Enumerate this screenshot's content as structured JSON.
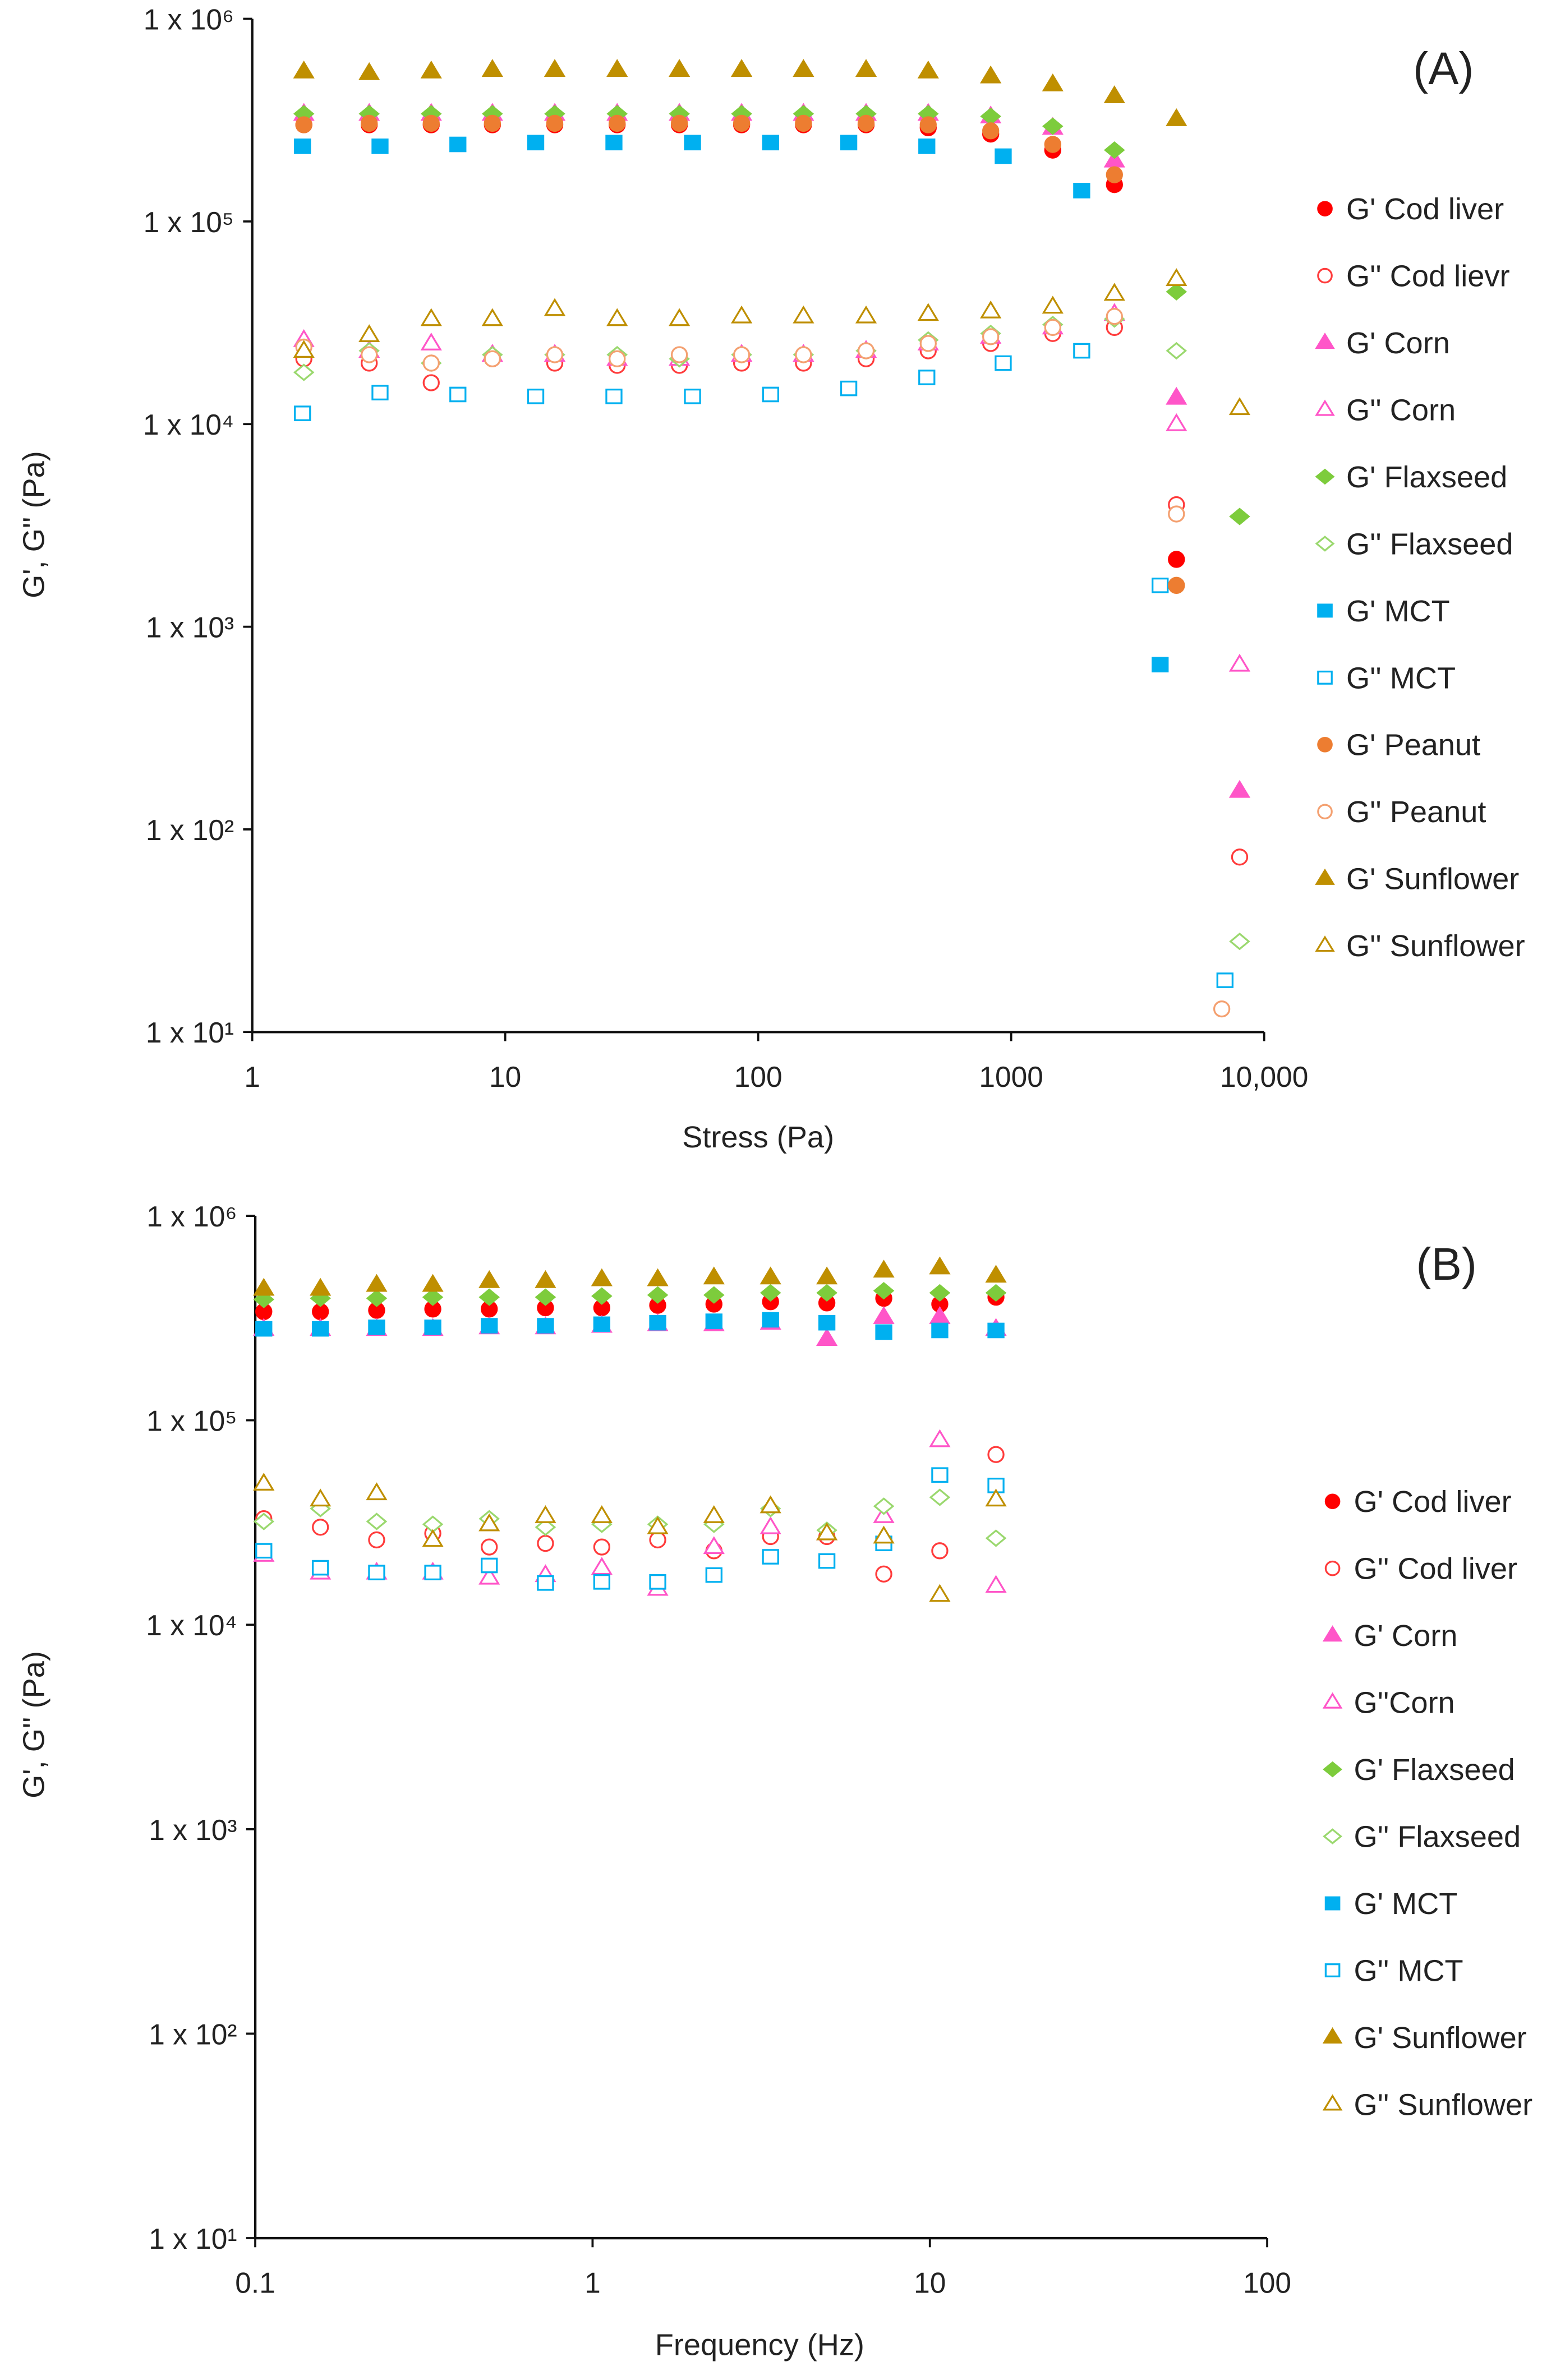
{
  "chart_data": [
    {
      "panel": "(A)",
      "type": "scatter",
      "xlabel": "Stress (Pa)",
      "ylabel": "G', G'' (Pa)",
      "xscale": "log",
      "yscale": "log",
      "xlim": [
        1,
        10000
      ],
      "ylim": [
        10,
        1000000
      ],
      "xticks": [
        {
          "v": 1,
          "label": "1"
        },
        {
          "v": 10,
          "label": "10"
        },
        {
          "v": 100,
          "label": "100"
        },
        {
          "v": 1000,
          "label": "1000"
        },
        {
          "v": 10000,
          "label": "10,000"
        }
      ],
      "yticks": [
        {
          "v": 1000000,
          "label": "1 x 10⁶"
        },
        {
          "v": 100000,
          "label": "1 x 10⁵"
        },
        {
          "v": 10000,
          "label": "1 x 10⁴"
        },
        {
          "v": 1000,
          "label": "1 x 10³"
        },
        {
          "v": 100,
          "label": "1 x 10²"
        },
        {
          "v": 10,
          "label": "1 x 10¹"
        }
      ],
      "legend_position": "right",
      "series": [
        {
          "name": "G' Cod liver",
          "color": "#ff0000",
          "marker": "circle",
          "filled": true,
          "x": [
            1.6,
            2.9,
            5.1,
            8.9,
            15.7,
            27.7,
            48.8,
            86,
            151,
            267,
            470,
            830,
            1460,
            2560,
            4500
          ],
          "y": [
            300000,
            300000,
            300000,
            300000,
            300000,
            300000,
            300000,
            300000,
            300000,
            300000,
            290000,
            270000,
            225000,
            152000,
            2150
          ]
        },
        {
          "name": "G'' Cod lievr",
          "color": "#ff3b3b",
          "marker": "circle",
          "filled": false,
          "x": [
            1.6,
            2.9,
            5.1,
            8.9,
            15.7,
            27.7,
            48.8,
            86,
            151,
            267,
            470,
            830,
            1460,
            2560,
            4500,
            8000
          ],
          "y": [
            21000,
            20000,
            16000,
            21000,
            20000,
            19500,
            19500,
            20000,
            20000,
            21000,
            23000,
            25000,
            28000,
            30000,
            4000,
            73
          ]
        },
        {
          "name": "G' Corn",
          "color": "#ff55c8",
          "marker": "triangle",
          "filled": true,
          "x": [
            1.6,
            2.9,
            5.1,
            8.9,
            15.7,
            27.7,
            48.8,
            86,
            151,
            267,
            470,
            830,
            1460,
            2560,
            4500,
            8000
          ],
          "y": [
            340000,
            340000,
            340000,
            340000,
            340000,
            340000,
            340000,
            340000,
            340000,
            340000,
            340000,
            330000,
            290000,
            200000,
            13500,
            155
          ]
        },
        {
          "name": "G'' Corn",
          "color": "#ff55c8",
          "marker": "triangle",
          "filled": false,
          "x": [
            1.6,
            2.9,
            5.1,
            8.9,
            15.7,
            27.7,
            48.8,
            86,
            151,
            267,
            470,
            830,
            1460,
            2560,
            4500,
            8000
          ],
          "y": [
            26000,
            23000,
            25000,
            22000,
            22000,
            21000,
            21000,
            22000,
            22000,
            23000,
            25000,
            27000,
            30000,
            35000,
            10000,
            650
          ]
        },
        {
          "name": "G' Flaxseed",
          "color": "#7dcc3c",
          "marker": "diamond",
          "filled": true,
          "x": [
            1.6,
            2.9,
            5.1,
            8.9,
            15.7,
            27.7,
            48.8,
            86,
            151,
            267,
            470,
            830,
            1460,
            2560,
            4500,
            8000
          ],
          "y": [
            340000,
            340000,
            340000,
            340000,
            340000,
            340000,
            340000,
            340000,
            340000,
            340000,
            340000,
            330000,
            295000,
            225000,
            45000,
            3500
          ]
        },
        {
          "name": "G'' Flaxseed",
          "color": "#9ad86e",
          "marker": "diamond",
          "filled": false,
          "x": [
            1.6,
            2.9,
            5.1,
            8.9,
            15.7,
            27.7,
            48.8,
            86,
            151,
            267,
            470,
            830,
            1460,
            2560,
            4500,
            8000
          ],
          "y": [
            18000,
            23000,
            20000,
            22000,
            22000,
            22000,
            21000,
            22000,
            22000,
            23000,
            26000,
            28000,
            31000,
            33000,
            23000,
            28
          ]
        },
        {
          "name": "G' MCT",
          "color": "#00b0f0",
          "marker": "square",
          "filled": true,
          "x": [
            1.58,
            3.2,
            6.5,
            13.2,
            26.9,
            55,
            112,
            228,
            464,
            930,
            1900,
            3880
          ],
          "y": [
            235000,
            235000,
            240000,
            245000,
            245000,
            245000,
            245000,
            245000,
            235000,
            210000,
            142000,
            650
          ]
        },
        {
          "name": "G'' MCT",
          "color": "#00b0f0",
          "marker": "square",
          "filled": false,
          "x": [
            1.58,
            3.2,
            6.5,
            13.2,
            26.9,
            55,
            112,
            228,
            464,
            930,
            1900,
            3880,
            7000
          ],
          "y": [
            11300,
            14300,
            14000,
            13700,
            13700,
            13700,
            14000,
            15000,
            17000,
            20000,
            23000,
            1600,
            18
          ]
        },
        {
          "name": "G' Peanut",
          "color": "#ed7d31",
          "marker": "circle",
          "filled": true,
          "x": [
            1.6,
            2.9,
            5.1,
            8.9,
            15.7,
            27.7,
            48.8,
            86,
            151,
            267,
            470,
            830,
            1460,
            2560,
            4500
          ],
          "y": [
            300000,
            305000,
            305000,
            305000,
            305000,
            305000,
            305000,
            305000,
            305000,
            305000,
            300000,
            280000,
            240000,
            170000,
            1600
          ]
        },
        {
          "name": "G'' Peanut",
          "color": "#f4a070",
          "marker": "circle",
          "filled": false,
          "x": [
            1.6,
            2.9,
            5.1,
            8.9,
            15.7,
            27.7,
            48.8,
            86,
            151,
            267,
            470,
            830,
            1460,
            2560,
            4500,
            6800
          ],
          "y": [
            24000,
            22000,
            20000,
            21000,
            22000,
            21000,
            22000,
            22000,
            22000,
            23000,
            25000,
            27000,
            30000,
            34000,
            3600,
            13
          ]
        },
        {
          "name": "G' Sunflower",
          "color": "#bf8f00",
          "marker": "triangle",
          "filled": true,
          "x": [
            1.6,
            2.9,
            5.1,
            8.9,
            15.7,
            27.7,
            48.8,
            86,
            151,
            267,
            470,
            830,
            1460,
            2560,
            4500
          ],
          "y": [
            550000,
            540000,
            550000,
            560000,
            560000,
            560000,
            560000,
            560000,
            560000,
            560000,
            550000,
            520000,
            475000,
            415000,
            320000
          ]
        },
        {
          "name": "G'' Sunflower",
          "color": "#bf8f00",
          "marker": "triangle",
          "filled": false,
          "x": [
            1.6,
            2.9,
            5.1,
            8.9,
            15.7,
            27.7,
            48.8,
            86,
            151,
            267,
            470,
            830,
            1460,
            2560,
            4500,
            8000
          ],
          "y": [
            23000,
            27500,
            33000,
            33000,
            37000,
            33000,
            33000,
            34000,
            34000,
            34000,
            35000,
            36000,
            38000,
            44000,
            52000,
            12000
          ]
        }
      ]
    },
    {
      "panel": "(B)",
      "type": "scatter",
      "xlabel": "Frequency (Hz)",
      "ylabel": "G', G'' (Pa)",
      "xscale": "log",
      "yscale": "log",
      "xlim": [
        0.1,
        100
      ],
      "ylim": [
        10,
        1000000
      ],
      "xticks": [
        {
          "v": 0.1,
          "label": "0.1"
        },
        {
          "v": 1,
          "label": "1"
        },
        {
          "v": 10,
          "label": "10"
        },
        {
          "v": 100,
          "label": "100"
        }
      ],
      "yticks": [
        {
          "v": 1000000,
          "label": "1 x 10⁶"
        },
        {
          "v": 100000,
          "label": "1 x 10⁵"
        },
        {
          "v": 10000,
          "label": "1 x 10⁴"
        },
        {
          "v": 1000,
          "label": "1 x 10³"
        },
        {
          "v": 100,
          "label": "1 x 10²"
        },
        {
          "v": 10,
          "label": "1 x 10¹"
        }
      ],
      "legend_position": "right",
      "x": [
        0.106,
        0.156,
        0.229,
        0.336,
        0.494,
        0.725,
        1.065,
        1.56,
        2.29,
        3.37,
        4.95,
        7.3,
        10.7,
        15.7
      ],
      "series": [
        {
          "name": "G' Cod liver",
          "color": "#ff0000",
          "marker": "circle",
          "filled": true,
          "y": [
            340000,
            340000,
            345000,
            350000,
            350000,
            355000,
            355000,
            365000,
            370000,
            380000,
            375000,
            395000,
            370000,
            400000
          ]
        },
        {
          "name": "G'' Cod liver",
          "color": "#ff3b3b",
          "marker": "circle",
          "filled": false,
          "y": [
            33000,
            30000,
            26000,
            28000,
            24000,
            25000,
            24000,
            26000,
            23000,
            27000,
            27000,
            17700,
            23000,
            68000
          ]
        },
        {
          "name": "G' Corn",
          "color": "#ff55c8",
          "marker": "triangle",
          "filled": true,
          "y": [
            280000,
            280000,
            280000,
            280000,
            285000,
            285000,
            290000,
            295000,
            295000,
            300000,
            250000,
            320000,
            320000,
            280000
          ]
        },
        {
          "name": "G''Corn",
          "color": "#ff55c8",
          "marker": "triangle",
          "filled": false,
          "y": [
            22000,
            18000,
            18000,
            18000,
            17000,
            17500,
            19000,
            15000,
            24000,
            30000,
            28000,
            34000,
            80000,
            15500
          ]
        },
        {
          "name": "G' Flaxseed",
          "color": "#7dcc3c",
          "marker": "diamond",
          "filled": true,
          "y": [
            390000,
            395000,
            395000,
            400000,
            400000,
            400000,
            405000,
            410000,
            410000,
            420000,
            420000,
            430000,
            420000,
            420000
          ]
        },
        {
          "name": "G'' Flaxseed",
          "color": "#9ad86e",
          "marker": "diamond",
          "filled": false,
          "y": [
            32000,
            37000,
            32000,
            31000,
            33000,
            30000,
            31000,
            31000,
            31000,
            37000,
            29000,
            38000,
            42000,
            26500
          ]
        },
        {
          "name": "G' MCT",
          "color": "#00b0f0",
          "marker": "square",
          "filled": true,
          "y": [
            280000,
            280000,
            285000,
            285000,
            290000,
            290000,
            295000,
            300000,
            305000,
            310000,
            300000,
            270000,
            275000,
            275000
          ]
        },
        {
          "name": "G'' MCT",
          "color": "#00b0f0",
          "marker": "square",
          "filled": false,
          "y": [
            23000,
            19000,
            18000,
            18000,
            19500,
            16000,
            16200,
            16200,
            17500,
            21500,
            20500,
            25000,
            54000,
            48000
          ]
        },
        {
          "name": "G' Sunflower",
          "color": "#bf8f00",
          "marker": "triangle",
          "filled": true,
          "y": [
            440000,
            440000,
            460000,
            460000,
            480000,
            480000,
            490000,
            490000,
            500000,
            500000,
            500000,
            540000,
            560000,
            510000
          ]
        },
        {
          "name": "G'' Sunflower",
          "color": "#bf8f00",
          "marker": "triangle",
          "filled": false,
          "y": [
            49000,
            41000,
            44000,
            26000,
            31000,
            34000,
            34000,
            30000,
            34000,
            38000,
            28000,
            27000,
            14000,
            41000
          ]
        }
      ]
    }
  ]
}
